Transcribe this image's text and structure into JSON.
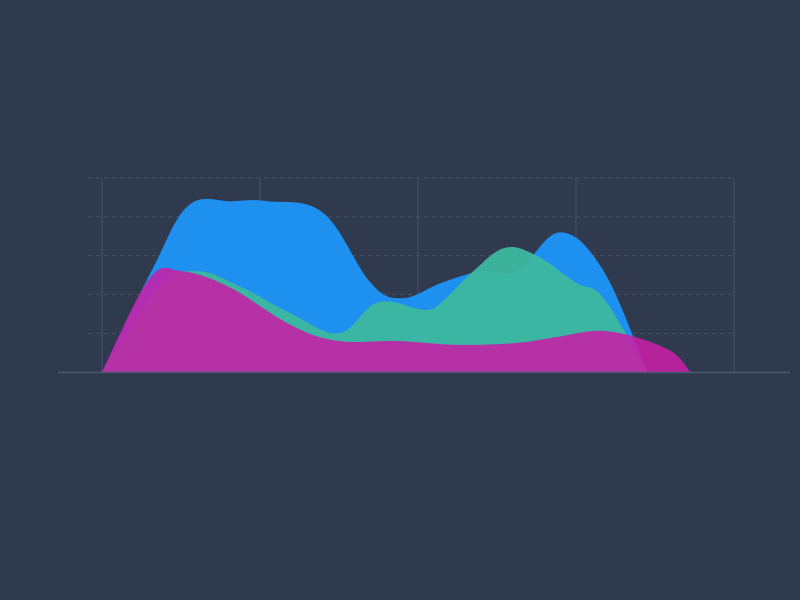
{
  "colors": {
    "background": "#303a4e",
    "grid_line": "#46506a",
    "baseline": "#4c566d"
  },
  "chart_data": {
    "type": "area",
    "title": "",
    "xlabel": "",
    "ylabel": "",
    "grid": true,
    "legend": "none",
    "xlim": [
      0,
      16
    ],
    "ylim": [
      0,
      5
    ],
    "x_gridlines": [
      0,
      4,
      8,
      12,
      16
    ],
    "y_gridlines": [
      1,
      2,
      3,
      4,
      5
    ],
    "series": [
      {
        "color": "#1e90f0",
        "opacity": 1,
        "x": [
          0,
          1.3,
          2.2,
          3.3,
          4.2,
          5.6,
          6.8,
          7.6,
          8.6,
          9.6,
          10.5,
          11.6,
          12.7,
          13.8
        ],
        "values": [
          0,
          2.7,
          4.3,
          4.4,
          4.4,
          4.1,
          2.3,
          1.9,
          2.3,
          2.6,
          2.6,
          3.6,
          2.6,
          0
        ]
      },
      {
        "color": "#3db89e",
        "opacity": 0.95,
        "x": [
          0,
          1.5,
          2.4,
          3.5,
          4.8,
          6.0,
          7.0,
          8.2,
          8.7,
          9.4,
          10.2,
          11.0,
          12.0,
          12.7,
          13.8
        ],
        "values": [
          0,
          2.2,
          2.6,
          2.2,
          1.5,
          1.0,
          1.8,
          1.6,
          1.9,
          2.6,
          3.2,
          3.0,
          2.3,
          1.9,
          0
        ]
      },
      {
        "color": "#c81fa6",
        "opacity": 0.88,
        "x": [
          0,
          1.2,
          2.0,
          3.2,
          4.8,
          6.0,
          7.5,
          9.0,
          10.5,
          11.5,
          12.8,
          14.3,
          14.9
        ],
        "values": [
          0,
          2.4,
          2.6,
          2.2,
          1.2,
          0.8,
          0.8,
          0.7,
          0.75,
          0.9,
          1.05,
          0.6,
          0
        ]
      }
    ]
  }
}
